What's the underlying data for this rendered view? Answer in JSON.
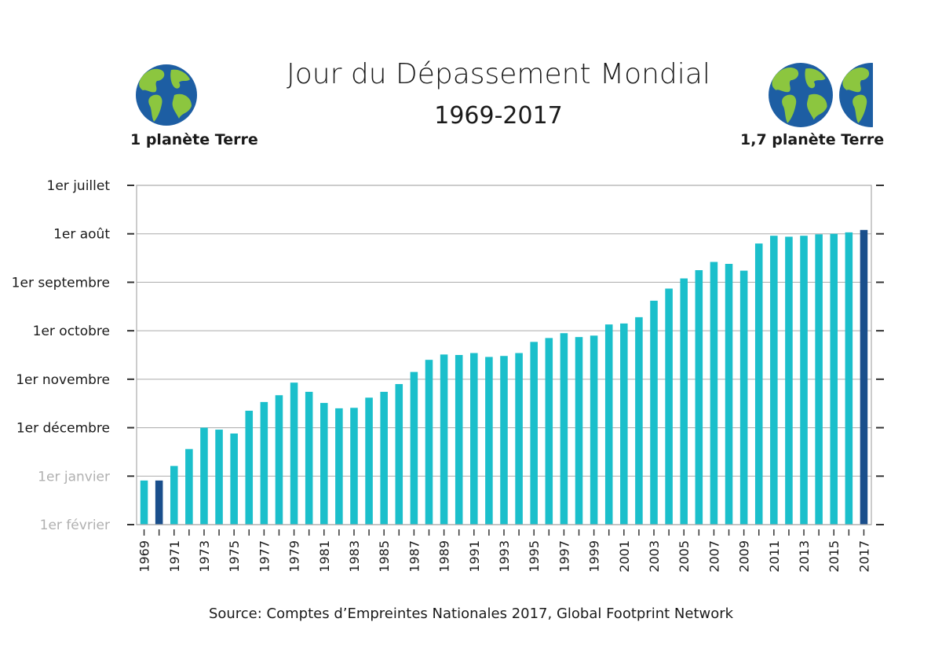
{
  "title": "Jour du Dépassement Mondial",
  "subtitle": "1969-2017",
  "left_planet": {
    "label": "1 planète Terre",
    "icon": "earth-globe-icon"
  },
  "right_planet": {
    "label": "1,7 planète Terre",
    "icon": "earth-globe-icon"
  },
  "source": "Source: Comptes d’Empreintes Nationales 2017, Global Footprint Network",
  "colors": {
    "bar": "#1bbfcb",
    "highlight": "#1a4f8c",
    "axis": "#333333",
    "grid": "#aaaaaa",
    "faded_label": "#b0b0b0",
    "ocean": "#1d5ea3",
    "land": "#8cc63f"
  },
  "chart_data": {
    "type": "bar",
    "title": "Jour du Dépassement Mondial",
    "subtitle": "1969-2017",
    "xlabel": "",
    "ylabel": "",
    "y_unit": "months after 1er janvier (Feb=-1, Jan=0, Dec=1 ... Jul=6)",
    "ylim": [
      -1,
      6
    ],
    "yticks": [
      {
        "value": 6,
        "label": "1er juillet",
        "faded": false
      },
      {
        "value": 5,
        "label": "1er août",
        "faded": false
      },
      {
        "value": 4,
        "label": "1er septembre",
        "faded": false
      },
      {
        "value": 3,
        "label": "1er octobre",
        "faded": false
      },
      {
        "value": 2,
        "label": "1er novembre",
        "faded": false
      },
      {
        "value": 1,
        "label": "1er décembre",
        "faded": false
      },
      {
        "value": 0,
        "label": "1er janvier",
        "faded": true
      },
      {
        "value": -1,
        "label": "1er février",
        "faded": true
      }
    ],
    "categories": [
      "1969",
      "1970",
      "1971",
      "1972",
      "1973",
      "1974",
      "1975",
      "1976",
      "1977",
      "1978",
      "1979",
      "1980",
      "1981",
      "1982",
      "1983",
      "1984",
      "1985",
      "1986",
      "1987",
      "1988",
      "1989",
      "1990",
      "1991",
      "1992",
      "1993",
      "1994",
      "1995",
      "1996",
      "1997",
      "1998",
      "1999",
      "2000",
      "2001",
      "2002",
      "2003",
      "2004",
      "2005",
      "2006",
      "2007",
      "2008",
      "2009",
      "2010",
      "2011",
      "2012",
      "2013",
      "2014",
      "2015",
      "2016",
      "2017"
    ],
    "xtick_labels": [
      "1969",
      "1971",
      "1973",
      "1975",
      "1977",
      "1979",
      "1981",
      "1983",
      "1985",
      "1987",
      "1989",
      "1991",
      "1993",
      "1995",
      "1997",
      "1999",
      "2001",
      "2003",
      "2005",
      "2007",
      "2009",
      "2011",
      "2013",
      "2015",
      "2017"
    ],
    "values": [
      -0.09,
      -0.09,
      0.21,
      0.56,
      1.0,
      0.96,
      0.88,
      1.35,
      1.53,
      1.67,
      1.93,
      1.74,
      1.51,
      1.4,
      1.41,
      1.62,
      1.74,
      1.9,
      2.15,
      2.4,
      2.51,
      2.5,
      2.54,
      2.46,
      2.48,
      2.54,
      2.77,
      2.85,
      2.95,
      2.87,
      2.9,
      3.13,
      3.15,
      3.28,
      3.62,
      3.87,
      4.08,
      4.25,
      4.42,
      4.38,
      4.24,
      4.8,
      4.96,
      4.94,
      4.96,
      4.99,
      5.0,
      5.03,
      5.08
    ],
    "highlight_indices": [
      1,
      48
    ]
  }
}
